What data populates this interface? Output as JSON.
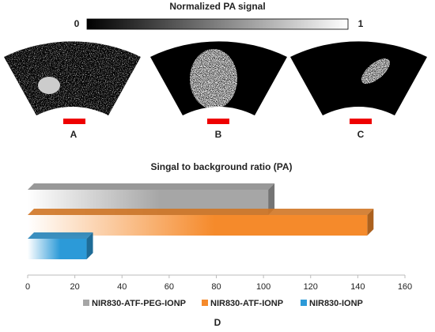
{
  "colorbar": {
    "title": "Normalized PA signal",
    "min_label": "0",
    "max_label": "1"
  },
  "panels": [
    "A",
    "B",
    "C"
  ],
  "figure_label": "D",
  "chart_data": {
    "type": "bar",
    "orientation": "horizontal",
    "title": "Singal to background ratio (PA)",
    "series": [
      {
        "name": "NIR830-ATF-PEG-IONP",
        "color": "#a6a6a6",
        "values": [
          102
        ]
      },
      {
        "name": "NIR830-ATF-IONP",
        "color": "#f58a2b",
        "values": [
          144
        ]
      },
      {
        "name": "NIR830-IONP",
        "color": "#2c9ad8",
        "values": [
          25
        ]
      }
    ],
    "xlim": [
      0,
      160
    ],
    "xticks": [
      0,
      20,
      40,
      60,
      80,
      100,
      120,
      140,
      160
    ],
    "legend": "bottom"
  }
}
